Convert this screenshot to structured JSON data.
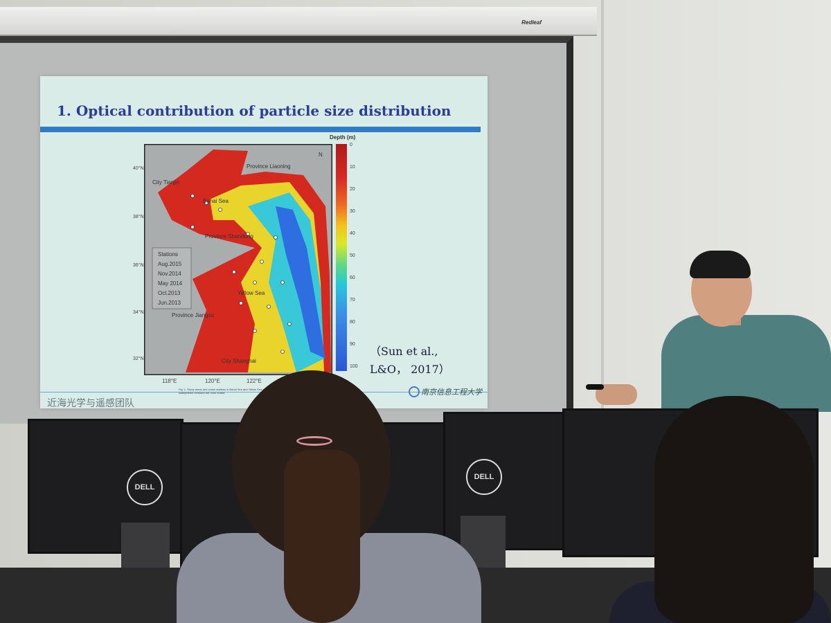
{
  "projector_brand": "Redleaf",
  "slide": {
    "title": "1. Optical contribution of particle size distribution",
    "map": {
      "colorbar_title": "Depth (m)",
      "colorbar_ticks": [
        "0",
        "10",
        "20",
        "30",
        "40",
        "50",
        "60",
        "70",
        "80",
        "90",
        "100"
      ],
      "x_ticks": [
        "118°E",
        "120°E",
        "122°E"
      ],
      "y_ticks": [
        "40°N",
        "38°N",
        "36°N",
        "34°N",
        "32°N"
      ],
      "labels": {
        "tianjin": "City Tianjin",
        "liaoning": "Province Liaoning",
        "bohai": "Bohai Sea",
        "shandong": "Province Shandong",
        "yellow": "Yellow Sea",
        "jiangsu": "Province Jiangsu",
        "shanghai": "City Shanghai",
        "north": "N"
      },
      "legend": {
        "title": "Stations",
        "items": [
          "Aug.2015",
          "Nov.2014",
          "May 2014",
          "Oct.2013",
          "Jun.2013"
        ]
      },
      "caption": "Fig. 1. Study areas and cruise stations in Bohai Sea and Yellow Sea examined over ... 2014, October 2013, and June 2013. Bathymetric contours are color coded."
    },
    "citation_line1": "（Sun et al.,",
    "citation_line2": "L&O， 2017）",
    "team": "近海光学与遥感团队",
    "university": "南京信息工程大学"
  },
  "monitor_brand": "DELL"
}
